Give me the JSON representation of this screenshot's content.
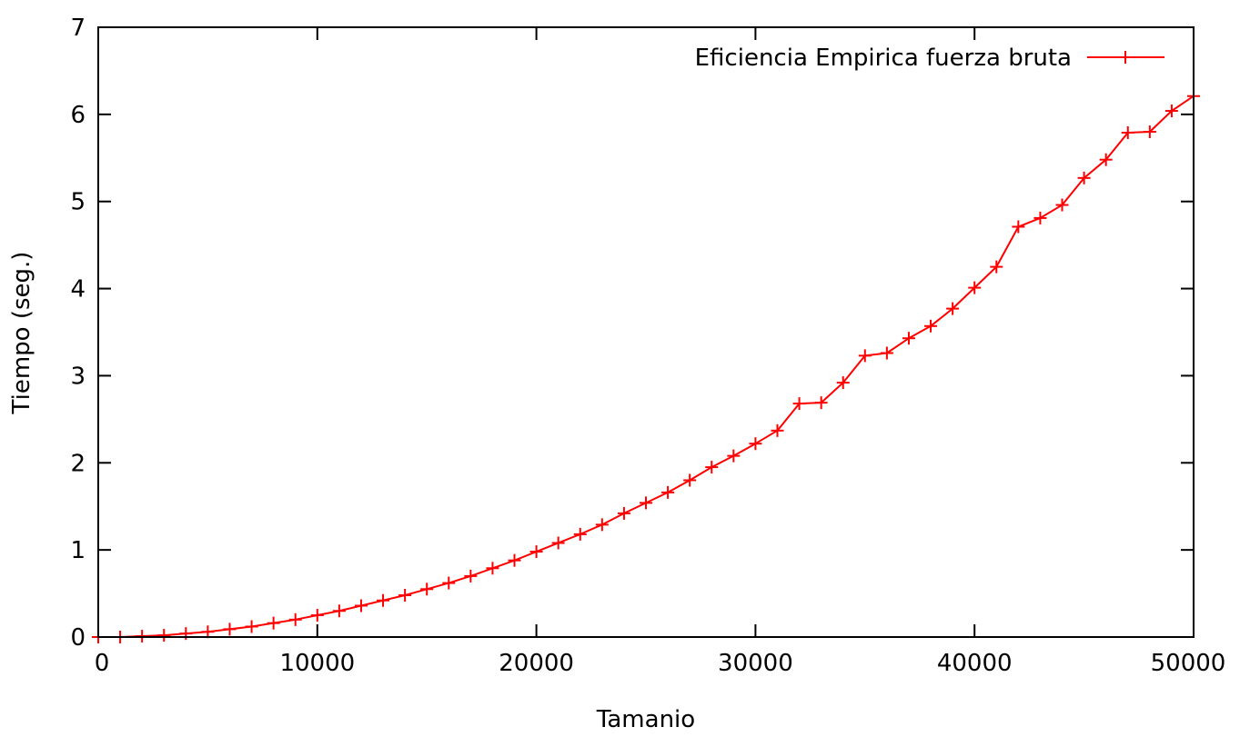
{
  "chart_data": {
    "type": "line",
    "title": "",
    "xlabel": "Tamanio",
    "ylabel": "Tiempo (seg.)",
    "xlim": [
      0,
      50000
    ],
    "ylim": [
      0,
      7
    ],
    "x_ticks": [
      0,
      10000,
      20000,
      30000,
      40000,
      50000
    ],
    "y_ticks": [
      0,
      1,
      2,
      3,
      4,
      5,
      6,
      7
    ],
    "grid": false,
    "legend_position": "top-right",
    "series": [
      {
        "name": "Eficiencia Empirica fuerza bruta",
        "color": "#ff0000",
        "marker": "plus",
        "x": [
          0,
          1000,
          2000,
          3000,
          4000,
          5000,
          6000,
          7000,
          8000,
          9000,
          10000,
          11000,
          12000,
          13000,
          14000,
          15000,
          16000,
          17000,
          18000,
          19000,
          20000,
          21000,
          22000,
          23000,
          24000,
          25000,
          26000,
          27000,
          28000,
          29000,
          30000,
          31000,
          32000,
          33000,
          34000,
          35000,
          36000,
          37000,
          38000,
          39000,
          40000,
          41000,
          42000,
          43000,
          44000,
          45000,
          46000,
          47000,
          48000,
          49000,
          50000
        ],
        "y": [
          0,
          0.0,
          0.01,
          0.02,
          0.04,
          0.06,
          0.09,
          0.12,
          0.16,
          0.2,
          0.25,
          0.3,
          0.36,
          0.42,
          0.48,
          0.55,
          0.62,
          0.7,
          0.79,
          0.88,
          0.98,
          1.08,
          1.18,
          1.29,
          1.42,
          1.54,
          1.66,
          1.8,
          1.95,
          2.08,
          2.22,
          2.37,
          2.68,
          2.69,
          2.92,
          3.23,
          3.26,
          3.43,
          3.57,
          3.77,
          4.01,
          4.25,
          4.71,
          4.81,
          4.96,
          5.27,
          5.48,
          5.79,
          5.8,
          6.04,
          6.21
        ]
      }
    ]
  }
}
